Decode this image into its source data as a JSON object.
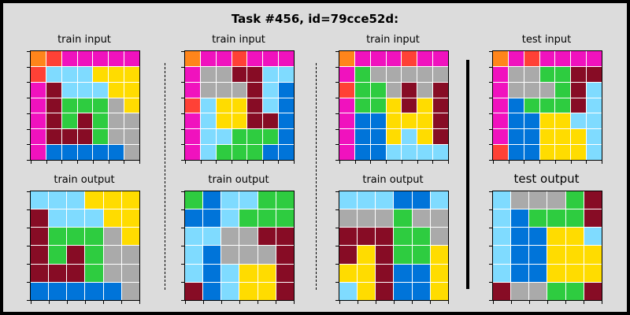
{
  "title": "Task #456, id=79cce52d:",
  "colors": {
    "0": "#000000",
    "1": "#0074d9",
    "2": "#ff4136",
    "3": "#2ecc40",
    "4": "#ffdc00",
    "5": "#aaaaaa",
    "6": "#f012be",
    "7": "#ff851b",
    "8": "#7fdbff",
    "9": "#870c25"
  },
  "panels": [
    {
      "label": "train input",
      "grid": [
        [
          7,
          2,
          6,
          6,
          6,
          6,
          6
        ],
        [
          2,
          8,
          8,
          8,
          4,
          4,
          4
        ],
        [
          6,
          9,
          8,
          8,
          8,
          4,
          4
        ],
        [
          6,
          9,
          3,
          3,
          3,
          5,
          4
        ],
        [
          6,
          9,
          3,
          9,
          3,
          5,
          5
        ],
        [
          6,
          9,
          9,
          9,
          3,
          5,
          5
        ],
        [
          6,
          1,
          1,
          1,
          1,
          1,
          5
        ]
      ]
    },
    {
      "label": "train output",
      "grid": [
        [
          8,
          8,
          8,
          4,
          4,
          4
        ],
        [
          9,
          8,
          8,
          8,
          4,
          4
        ],
        [
          9,
          3,
          3,
          3,
          5,
          4
        ],
        [
          9,
          3,
          9,
          3,
          5,
          5
        ],
        [
          9,
          9,
          9,
          3,
          5,
          5
        ],
        [
          1,
          1,
          1,
          1,
          1,
          5
        ]
      ]
    },
    {
      "label": "train input",
      "grid": [
        [
          7,
          6,
          6,
          2,
          6,
          6,
          6
        ],
        [
          6,
          5,
          5,
          9,
          9,
          8,
          8
        ],
        [
          6,
          5,
          5,
          5,
          9,
          8,
          1
        ],
        [
          2,
          8,
          4,
          4,
          9,
          8,
          1
        ],
        [
          6,
          8,
          4,
          4,
          9,
          9,
          1
        ],
        [
          6,
          8,
          8,
          3,
          3,
          3,
          1
        ],
        [
          6,
          8,
          3,
          3,
          3,
          1,
          1
        ]
      ]
    },
    {
      "label": "train output",
      "grid": [
        [
          3,
          1,
          8,
          8,
          3,
          3
        ],
        [
          1,
          1,
          8,
          3,
          3,
          3
        ],
        [
          8,
          8,
          5,
          5,
          9,
          9
        ],
        [
          8,
          1,
          5,
          5,
          5,
          9
        ],
        [
          8,
          1,
          8,
          4,
          4,
          9
        ],
        [
          9,
          1,
          8,
          4,
          4,
          9
        ]
      ]
    },
    {
      "label": "train input",
      "grid": [
        [
          7,
          6,
          6,
          6,
          2,
          6,
          6
        ],
        [
          6,
          3,
          5,
          5,
          5,
          5,
          5
        ],
        [
          2,
          3,
          3,
          5,
          9,
          5,
          9
        ],
        [
          6,
          3,
          3,
          4,
          9,
          4,
          9
        ],
        [
          6,
          1,
          1,
          4,
          4,
          4,
          9
        ],
        [
          6,
          1,
          1,
          4,
          8,
          4,
          9
        ],
        [
          6,
          1,
          1,
          8,
          8,
          8,
          8
        ]
      ]
    },
    {
      "label": "train output",
      "grid": [
        [
          8,
          8,
          8,
          1,
          1,
          8
        ],
        [
          5,
          5,
          5,
          3,
          5,
          5
        ],
        [
          9,
          9,
          9,
          3,
          3,
          5
        ],
        [
          9,
          4,
          9,
          3,
          3,
          4
        ],
        [
          4,
          4,
          9,
          1,
          1,
          4
        ],
        [
          8,
          4,
          9,
          1,
          1,
          4
        ]
      ]
    },
    {
      "label": "test input",
      "grid": [
        [
          7,
          6,
          2,
          6,
          6,
          6,
          6
        ],
        [
          6,
          5,
          5,
          3,
          3,
          9,
          9
        ],
        [
          6,
          5,
          5,
          5,
          3,
          9,
          8
        ],
        [
          6,
          1,
          3,
          3,
          3,
          9,
          8
        ],
        [
          6,
          1,
          1,
          4,
          4,
          8,
          8
        ],
        [
          6,
          1,
          1,
          4,
          4,
          4,
          8
        ],
        [
          2,
          1,
          1,
          4,
          4,
          4,
          8
        ]
      ]
    },
    {
      "label": "test output",
      "grid": [
        [
          8,
          5,
          5,
          5,
          3,
          9
        ],
        [
          8,
          1,
          3,
          3,
          3,
          9
        ],
        [
          8,
          1,
          1,
          4,
          4,
          8
        ],
        [
          8,
          1,
          1,
          4,
          4,
          4
        ],
        [
          8,
          1,
          1,
          4,
          4,
          4
        ],
        [
          9,
          5,
          5,
          3,
          3,
          9
        ]
      ]
    }
  ]
}
